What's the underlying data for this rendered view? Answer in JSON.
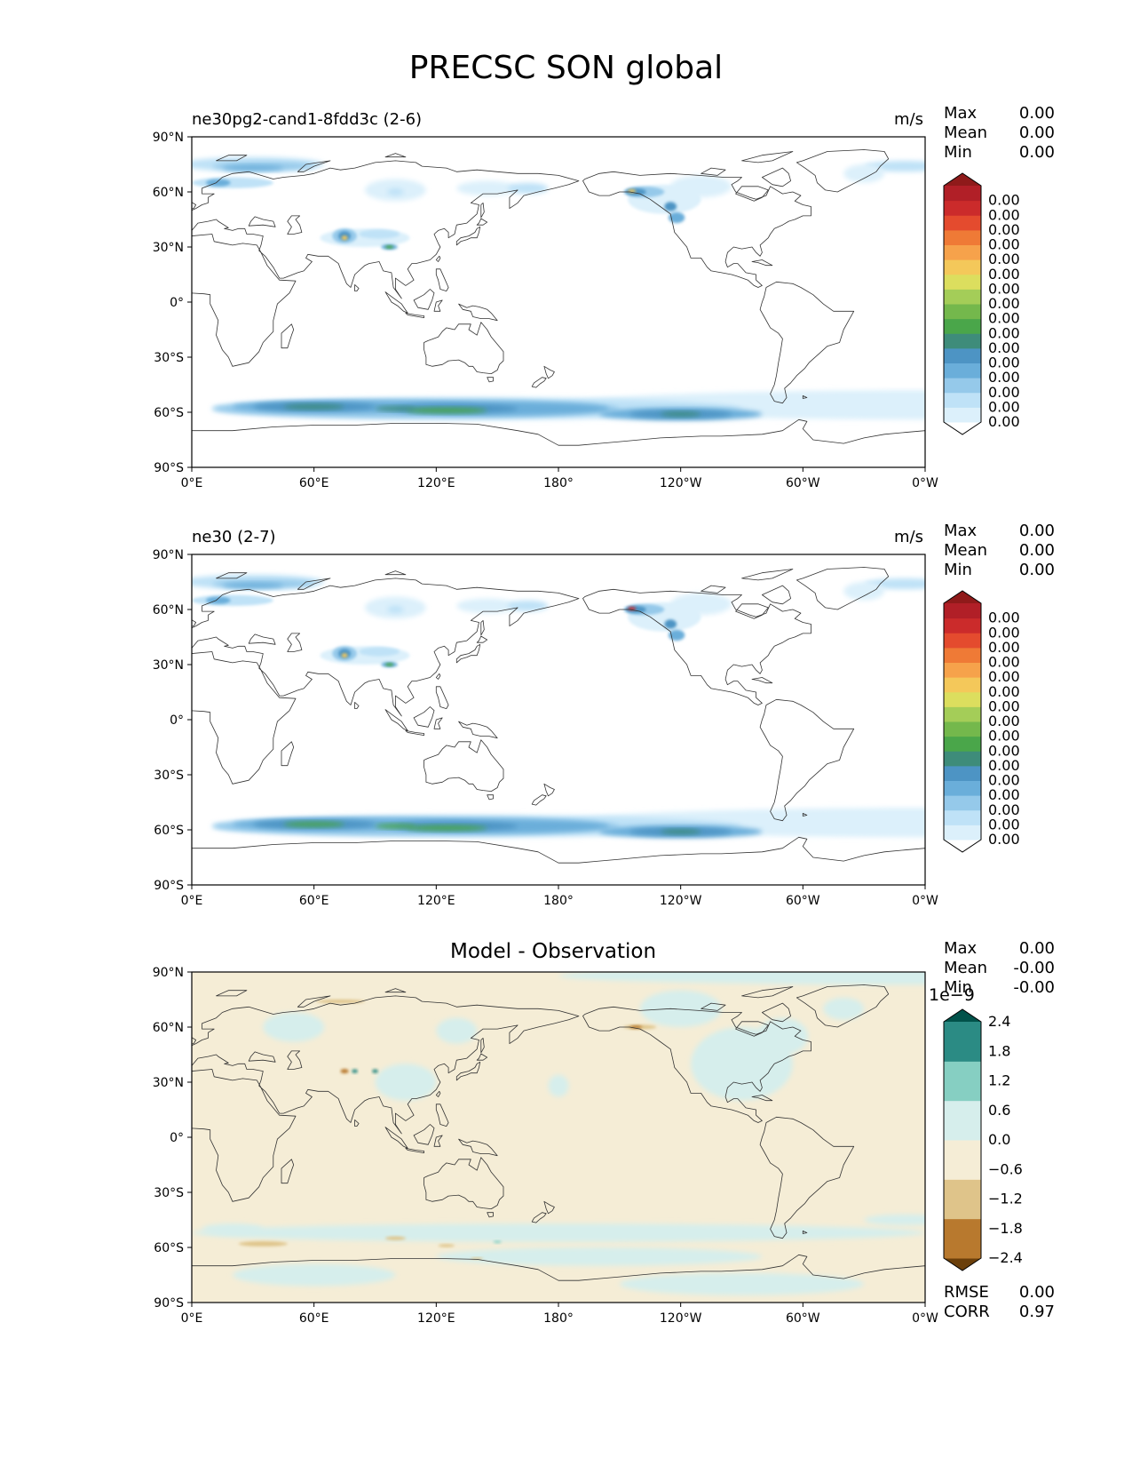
{
  "figure": {
    "title": "PRECSC SON global"
  },
  "axes": {
    "lat_ticks": [
      "90°N",
      "60°N",
      "30°N",
      "0°",
      "30°S",
      "60°S",
      "90°S"
    ],
    "lon_ticks": [
      "0°E",
      "60°E",
      "120°E",
      "180°",
      "120°W",
      "60°W",
      "0°W"
    ]
  },
  "panels": [
    {
      "id": "test",
      "title_left": "ne30pg2-cand1-8fdd3c (2-6)",
      "title_right": "m/s",
      "stats": [
        {
          "label": "Max",
          "value": "0.00"
        },
        {
          "label": "Mean",
          "value": "0.00"
        },
        {
          "label": "Min",
          "value": "0.00"
        }
      ],
      "colorbar": {
        "colors": [
          "#ffffff",
          "#dcf0fb",
          "#bfe2f7",
          "#95c9ea",
          "#6aaeda",
          "#4d94c4",
          "#3e8c7a",
          "#4aa64a",
          "#74b84c",
          "#a4cd58",
          "#dcde5e",
          "#f4c85a",
          "#f6a24b",
          "#ef7a36",
          "#e44b2e",
          "#cb2b2b",
          "#b11f27",
          "#8f1a1a"
        ],
        "labels": [
          "0.00",
          "0.00",
          "0.00",
          "0.00",
          "0.00",
          "0.00",
          "0.00",
          "0.00",
          "0.00",
          "0.00",
          "0.00",
          "0.00",
          "0.00",
          "0.00",
          "0.00",
          "0.00"
        ]
      }
    },
    {
      "id": "reference",
      "title_left": "ne30 (2-7)",
      "title_right": "m/s",
      "stats": [
        {
          "label": "Max",
          "value": "0.00"
        },
        {
          "label": "Mean",
          "value": "0.00"
        },
        {
          "label": "Min",
          "value": "0.00"
        }
      ],
      "colorbar": {
        "colors": [
          "#ffffff",
          "#dcf0fb",
          "#bfe2f7",
          "#95c9ea",
          "#6aaeda",
          "#4d94c4",
          "#3e8c7a",
          "#4aa64a",
          "#74b84c",
          "#a4cd58",
          "#dcde5e",
          "#f4c85a",
          "#f6a24b",
          "#ef7a36",
          "#e44b2e",
          "#cb2b2b",
          "#b11f27",
          "#8f1a1a"
        ],
        "labels": [
          "0.00",
          "0.00",
          "0.00",
          "0.00",
          "0.00",
          "0.00",
          "0.00",
          "0.00",
          "0.00",
          "0.00",
          "0.00",
          "0.00",
          "0.00",
          "0.00",
          "0.00",
          "0.00"
        ]
      }
    },
    {
      "id": "diff",
      "title_center": "Model - Observation",
      "stats": [
        {
          "label": "Max",
          "value": "0.00"
        },
        {
          "label": "Mean",
          "value": "-0.00"
        },
        {
          "label": "Min",
          "value": "-0.00"
        }
      ],
      "colorbar": {
        "offset_label": "1e−9",
        "colors": [
          "#6b3f0a",
          "#b8792e",
          "#dfc48a",
          "#f5edd6",
          "#d6eeec",
          "#86cfc2",
          "#2b8b84",
          "#01524a"
        ],
        "labels": [
          "−2.4",
          "−1.8",
          "−1.2",
          "−0.6",
          "0.0",
          "0.6",
          "1.2",
          "1.8",
          "2.4"
        ]
      },
      "bottom_stats": [
        {
          "label": "RMSE",
          "value": "0.00"
        },
        {
          "label": "CORR",
          "value": "0.97"
        }
      ]
    }
  ],
  "chart_data": [
    {
      "type": "heatmap",
      "title": "ne30pg2-cand1-8fdd3c (2-6)",
      "variable": "PRECSC",
      "units": "m/s",
      "season": "SON",
      "region": "global",
      "projection": "PlateCarree",
      "x_range": [
        0,
        360
      ],
      "y_range": [
        -90,
        90
      ],
      "stats": {
        "max": 0.0,
        "mean": 0.0,
        "min": 0.0
      },
      "colormap": "WhiteBlueGreenYellowRed",
      "features": [
        "Southern Ocean snowfall band near 55-65°S",
        "Arctic snowfall band north of 65°N",
        "Tibetan Plateau maximum",
        "Alaska coastal maximum"
      ]
    },
    {
      "type": "heatmap",
      "title": "ne30 (2-7)",
      "variable": "PRECSC",
      "units": "m/s",
      "season": "SON",
      "region": "global",
      "projection": "PlateCarree",
      "x_range": [
        0,
        360
      ],
      "y_range": [
        -90,
        90
      ],
      "stats": {
        "max": 0.0,
        "mean": 0.0,
        "min": 0.0
      },
      "colormap": "WhiteBlueGreenYellowRed"
    },
    {
      "type": "heatmap",
      "title": "Model - Observation",
      "variable": "PRECSC difference",
      "projection": "PlateCarree",
      "x_range": [
        0,
        360
      ],
      "y_range": [
        -90,
        90
      ],
      "levels": [
        -2.4e-09,
        -1.8e-09,
        -1.2e-09,
        -6e-10,
        0.0,
        6e-10,
        1.2e-09,
        1.8e-09,
        2.4e-09
      ],
      "stats": {
        "max": 0.0,
        "mean": -0.0,
        "min": -0.0,
        "rmse": 0.0,
        "corr": 0.97
      },
      "colormap": "BrBG"
    }
  ]
}
